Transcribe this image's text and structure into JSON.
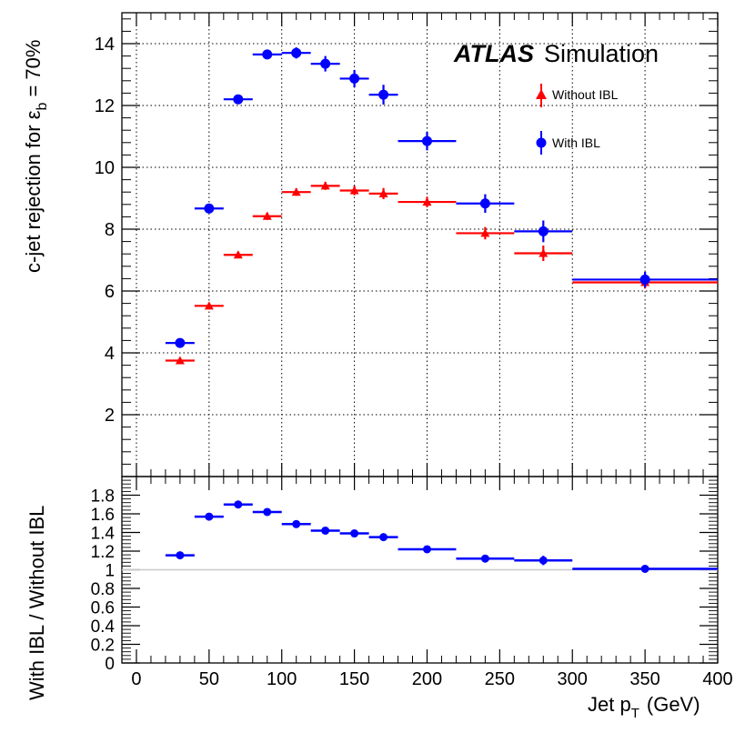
{
  "chart_data": [
    {
      "type": "scatter",
      "panel": "main",
      "title": "",
      "experiment_label": "ATLAS",
      "experiment_sublabel": "Simulation",
      "xlabel": "Jet p",
      "xlabel_sub": "T",
      "xlabel_unit": "(GeV)",
      "ylabel": "c-jet rejection for ε",
      "ylabel_sub": "b",
      "ylabel_tail": "= 70%",
      "xlim": [
        -10,
        400
      ],
      "ylim": [
        0,
        15
      ],
      "grid": true,
      "legend_position": "top-right",
      "x_ticks": [
        "0",
        "50",
        "100",
        "150",
        "200",
        "250",
        "300",
        "350",
        "400"
      ],
      "y_ticks": [
        "2",
        "4",
        "6",
        "8",
        "10",
        "12",
        "14"
      ],
      "series": [
        {
          "name": "Without IBL",
          "marker": "triangle",
          "color": "#ff0000",
          "points": [
            {
              "x": 30,
              "xlo": 20,
              "xhi": 40,
              "y": 3.75,
              "yerr": 0.07
            },
            {
              "x": 50,
              "xlo": 40,
              "xhi": 60,
              "y": 5.52,
              "yerr": 0.08
            },
            {
              "x": 70,
              "xlo": 60,
              "xhi": 80,
              "y": 7.17,
              "yerr": 0.1
            },
            {
              "x": 90,
              "xlo": 80,
              "xhi": 100,
              "y": 8.42,
              "yerr": 0.12
            },
            {
              "x": 110,
              "xlo": 100,
              "xhi": 120,
              "y": 9.2,
              "yerr": 0.12
            },
            {
              "x": 130,
              "xlo": 120,
              "xhi": 140,
              "y": 9.4,
              "yerr": 0.13
            },
            {
              "x": 150,
              "xlo": 140,
              "xhi": 160,
              "y": 9.25,
              "yerr": 0.15
            },
            {
              "x": 170,
              "xlo": 160,
              "xhi": 180,
              "y": 9.15,
              "yerr": 0.18
            },
            {
              "x": 200,
              "xlo": 180,
              "xhi": 220,
              "y": 8.88,
              "yerr": 0.17
            },
            {
              "x": 240,
              "xlo": 220,
              "xhi": 260,
              "y": 7.87,
              "yerr": 0.2
            },
            {
              "x": 280,
              "xlo": 260,
              "xhi": 300,
              "y": 7.22,
              "yerr": 0.25
            },
            {
              "x": 350,
              "xlo": 300,
              "xhi": 400,
              "y": 6.28,
              "yerr": 0.2
            }
          ]
        },
        {
          "name": "With IBL",
          "marker": "circle",
          "color": "#0000ff",
          "points": [
            {
              "x": 30,
              "xlo": 20,
              "xhi": 40,
              "y": 4.32,
              "yerr": 0.08
            },
            {
              "x": 50,
              "xlo": 40,
              "xhi": 60,
              "y": 8.67,
              "yerr": 0.1
            },
            {
              "x": 70,
              "xlo": 60,
              "xhi": 80,
              "y": 12.2,
              "yerr": 0.12
            },
            {
              "x": 90,
              "xlo": 80,
              "xhi": 100,
              "y": 13.65,
              "yerr": 0.13
            },
            {
              "x": 110,
              "xlo": 100,
              "xhi": 120,
              "y": 13.7,
              "yerr": 0.18
            },
            {
              "x": 130,
              "xlo": 120,
              "xhi": 140,
              "y": 13.35,
              "yerr": 0.25
            },
            {
              "x": 150,
              "xlo": 140,
              "xhi": 160,
              "y": 12.87,
              "yerr": 0.28
            },
            {
              "x": 170,
              "xlo": 160,
              "xhi": 180,
              "y": 12.35,
              "yerr": 0.32
            },
            {
              "x": 200,
              "xlo": 180,
              "xhi": 220,
              "y": 10.85,
              "yerr": 0.3
            },
            {
              "x": 240,
              "xlo": 220,
              "xhi": 260,
              "y": 8.83,
              "yerr": 0.3
            },
            {
              "x": 280,
              "xlo": 260,
              "xhi": 300,
              "y": 7.93,
              "yerr": 0.35
            },
            {
              "x": 350,
              "xlo": 300,
              "xhi": 400,
              "y": 6.37,
              "yerr": 0.25
            }
          ]
        }
      ]
    },
    {
      "type": "scatter",
      "panel": "ratio",
      "ylabel": "With IBL / Without IBL",
      "xlim": [
        -10,
        400
      ],
      "ylim": [
        0,
        2
      ],
      "reference_line": 1,
      "reference_color": "#c8c8c8",
      "x_ticks": [
        "0",
        "50",
        "100",
        "150",
        "200",
        "250",
        "300",
        "350",
        "400"
      ],
      "y_ticks": [
        "0",
        "0.2",
        "0.4",
        "0.6",
        "0.8",
        "1",
        "1.2",
        "1.4",
        "1.6",
        "1.8"
      ],
      "series": [
        {
          "name": "With IBL / Without IBL",
          "marker": "circle",
          "color": "#0000ff",
          "points": [
            {
              "x": 30,
              "xlo": 20,
              "xhi": 40,
              "y": 1.155,
              "yerr": 0.02
            },
            {
              "x": 50,
              "xlo": 40,
              "xhi": 60,
              "y": 1.57,
              "yerr": 0.02
            },
            {
              "x": 70,
              "xlo": 60,
              "xhi": 80,
              "y": 1.7,
              "yerr": 0.02
            },
            {
              "x": 90,
              "xlo": 80,
              "xhi": 100,
              "y": 1.62,
              "yerr": 0.02
            },
            {
              "x": 110,
              "xlo": 100,
              "xhi": 120,
              "y": 1.49,
              "yerr": 0.02
            },
            {
              "x": 130,
              "xlo": 120,
              "xhi": 140,
              "y": 1.42,
              "yerr": 0.02
            },
            {
              "x": 150,
              "xlo": 140,
              "xhi": 160,
              "y": 1.39,
              "yerr": 0.02
            },
            {
              "x": 170,
              "xlo": 160,
              "xhi": 180,
              "y": 1.35,
              "yerr": 0.03
            },
            {
              "x": 200,
              "xlo": 180,
              "xhi": 220,
              "y": 1.22,
              "yerr": 0.02
            },
            {
              "x": 240,
              "xlo": 220,
              "xhi": 260,
              "y": 1.12,
              "yerr": 0.03
            },
            {
              "x": 280,
              "xlo": 260,
              "xhi": 300,
              "y": 1.1,
              "yerr": 0.05
            },
            {
              "x": 350,
              "xlo": 300,
              "xhi": 400,
              "y": 1.01,
              "yerr": 0.03
            }
          ]
        }
      ]
    }
  ]
}
